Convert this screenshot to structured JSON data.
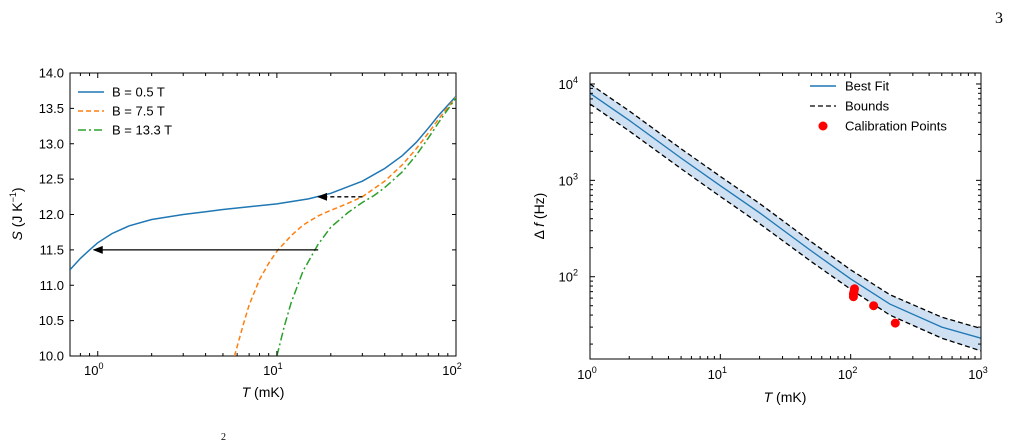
{
  "page": {
    "number": "3",
    "footer_fragment": "2"
  },
  "colors": {
    "blue": "#1f77b4",
    "orange": "#ff7f0e",
    "green": "#2ca02c",
    "band_fill": "#c6dbef",
    "red": "#ff0000",
    "black": "#000000"
  },
  "chart_data": [
    {
      "type": "line",
      "xscale": "log",
      "xlim": [
        0.7,
        100
      ],
      "ylim": [
        10.0,
        14.0
      ],
      "xlabel": "T (mK)",
      "xlabel_italic": "T",
      "xlabel_rest": " (mK)",
      "ylabel": "S (J K⁻¹)",
      "ylabel_italic": "S",
      "ylabel_rest": " (J K",
      "ylabel_sup": "−1",
      "ylabel_close": ")",
      "yticks": [
        "10.0",
        "10.5",
        "11.0",
        "11.5",
        "12.0",
        "12.5",
        "13.0",
        "13.5",
        "14.0"
      ],
      "xticks": [
        {
          "base": "10",
          "exp": "0"
        },
        {
          "base": "10",
          "exp": "1"
        },
        {
          "base": "10",
          "exp": "2"
        }
      ],
      "legend_position": "top-left",
      "series": [
        {
          "name": "B = 0.5 T",
          "style": "solid",
          "color": "#1f77b4",
          "x": [
            0.7,
            0.8,
            0.9,
            1.0,
            1.2,
            1.5,
            2,
            3,
            4,
            5,
            7,
            10,
            15,
            20,
            30,
            40,
            50,
            60,
            70,
            80,
            100
          ],
          "y": [
            11.22,
            11.38,
            11.5,
            11.6,
            11.73,
            11.84,
            11.93,
            12.0,
            12.04,
            12.07,
            12.11,
            12.15,
            12.22,
            12.3,
            12.47,
            12.65,
            12.83,
            13.02,
            13.22,
            13.4,
            13.67
          ]
        },
        {
          "name": "B = 7.5 T",
          "style": "dashed",
          "color": "#ff7f0e",
          "x": [
            5.8,
            6.5,
            7,
            8,
            9,
            10,
            12,
            14,
            17,
            20,
            25,
            30,
            40,
            50,
            60,
            70,
            80,
            100
          ],
          "y": [
            10.0,
            10.45,
            10.72,
            11.08,
            11.31,
            11.48,
            11.7,
            11.85,
            11.98,
            12.06,
            12.16,
            12.25,
            12.47,
            12.7,
            12.93,
            13.15,
            13.35,
            13.66
          ]
        },
        {
          "name": "B = 13.3 T",
          "style": "dashdot",
          "color": "#2ca02c",
          "x": [
            10.0,
            11,
            12,
            14,
            17,
            20,
            25,
            30,
            35,
            40,
            50,
            60,
            70,
            80,
            100
          ],
          "y": [
            10.0,
            10.42,
            10.75,
            11.2,
            11.58,
            11.82,
            12.03,
            12.17,
            12.27,
            12.38,
            12.6,
            12.84,
            13.08,
            13.3,
            13.65
          ]
        }
      ],
      "annotations": [
        {
          "type": "arrow",
          "style": "solid",
          "from": [
            17,
            11.5
          ],
          "to": [
            0.95,
            11.5
          ]
        },
        {
          "type": "arrow",
          "style": "dashed",
          "from": [
            30,
            12.25
          ],
          "to": [
            17,
            12.25
          ]
        }
      ]
    },
    {
      "type": "line",
      "xscale": "log",
      "yscale": "log",
      "xlim": [
        1,
        1000
      ],
      "ylim": [
        14,
        13000
      ],
      "xlabel": "T (mK)",
      "xlabel_italic": "T",
      "xlabel_rest": " (mK)",
      "ylabel": "Δ f (Hz)",
      "ylabel_prefix": "Δ ",
      "ylabel_italic": "f",
      "ylabel_rest": " (Hz)",
      "xticks": [
        {
          "base": "10",
          "exp": "0"
        },
        {
          "base": "10",
          "exp": "1"
        },
        {
          "base": "10",
          "exp": "2"
        },
        {
          "base": "10",
          "exp": "3"
        }
      ],
      "yticks": [
        {
          "base": "10",
          "exp": "2"
        },
        {
          "base": "10",
          "exp": "3"
        },
        {
          "base": "10",
          "exp": "4"
        }
      ],
      "legend_position": "top-right",
      "series": [
        {
          "name": "Best Fit",
          "style": "solid",
          "color": "#1f77b4",
          "x": [
            1,
            2,
            5,
            10,
            20,
            50,
            100,
            200,
            500,
            1000
          ],
          "y": [
            8000,
            4200,
            1700,
            880,
            460,
            185,
            95,
            52,
            30,
            23
          ]
        },
        {
          "name": "Bounds",
          "style": "dashed",
          "color": "#000000",
          "upper": [
            10000,
            5250,
            2125,
            1100,
            575,
            230,
            118,
            65,
            38,
            29
          ],
          "lower": [
            6200,
            3250,
            1320,
            680,
            355,
            143,
            74,
            40,
            23,
            17
          ]
        },
        {
          "name": "Calibration Points",
          "style": "markers",
          "color": "#ff0000",
          "x": [
            105,
            105,
            106,
            107,
            150,
            220
          ],
          "y": [
            62,
            66,
            70,
            75,
            50,
            33
          ]
        }
      ]
    }
  ]
}
